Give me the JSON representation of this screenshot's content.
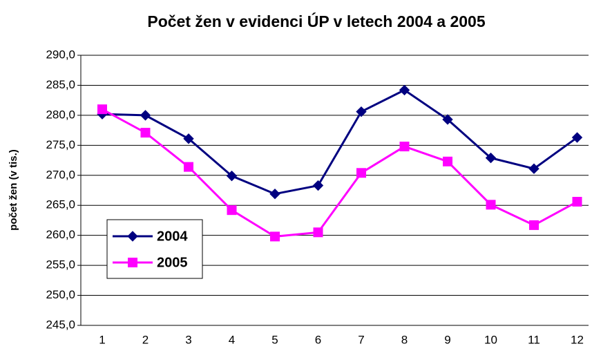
{
  "chart_data": {
    "type": "line",
    "title": "Počet žen v evidenci ÚP v letech 2004 a 2005",
    "y_label": "počet žen (v tis.)",
    "categories": [
      "1",
      "2",
      "3",
      "4",
      "5",
      "6",
      "7",
      "8",
      "9",
      "10",
      "11",
      "12"
    ],
    "series": [
      {
        "name": "2004",
        "color": "#000080",
        "marker": "diamond",
        "values": [
          280.2,
          280.0,
          276.1,
          269.9,
          266.9,
          268.3,
          280.6,
          284.2,
          279.3,
          272.9,
          271.1,
          276.3
        ]
      },
      {
        "name": "2005",
        "color": "#ff00ff",
        "marker": "square",
        "values": [
          281.0,
          277.1,
          271.4,
          264.2,
          259.8,
          260.5,
          270.4,
          274.8,
          272.3,
          265.1,
          261.7,
          265.6
        ]
      }
    ],
    "ylim": [
      245,
      290
    ],
    "yticks": [
      {
        "value": 245,
        "label": "245,0"
      },
      {
        "value": 250,
        "label": "250,0"
      },
      {
        "value": 255,
        "label": "255,0"
      },
      {
        "value": 260,
        "label": "260,0"
      },
      {
        "value": 265,
        "label": "265,0"
      },
      {
        "value": 270,
        "label": "270,0"
      },
      {
        "value": 275,
        "label": "275,0"
      },
      {
        "value": 280,
        "label": "280,0"
      },
      {
        "value": 285,
        "label": "285,0"
      },
      {
        "value": 290,
        "label": "290,0"
      }
    ],
    "grid": true,
    "legend": "left"
  }
}
